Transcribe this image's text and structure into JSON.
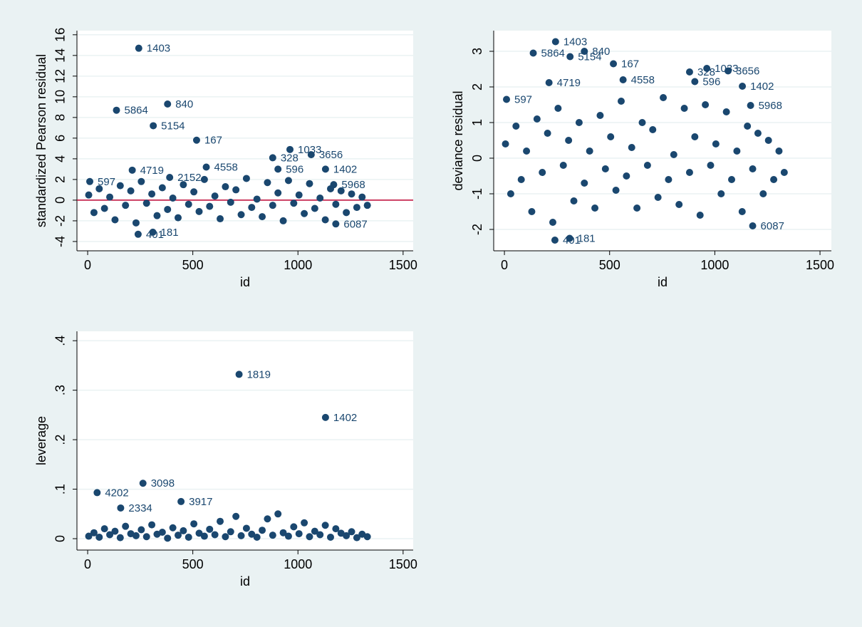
{
  "chart_data": [
    {
      "type": "scatter",
      "x_label": "id",
      "y_label": "standardized Pearson residual",
      "color": "#1a476f",
      "grid": true,
      "yline": {
        "value": 0,
        "color": "#c10534"
      },
      "xlim": [
        -51,
        1548
      ],
      "xticks": [
        0,
        500,
        1000,
        1500
      ],
      "ylim": [
        -4.9,
        16.4
      ],
      "yticks": [
        -4,
        -2,
        0,
        2,
        4,
        6,
        8,
        10,
        12,
        14,
        16
      ],
      "x": [
        243,
        137,
        380,
        312,
        518,
        564,
        962,
        880,
        1063,
        905,
        1131,
        212,
        390,
        1170,
        10,
        1180,
        240,
        310,
        5,
        30,
        55,
        80,
        105,
        130,
        155,
        180,
        205,
        230,
        255,
        280,
        305,
        330,
        355,
        380,
        405,
        430,
        455,
        480,
        505,
        530,
        555,
        580,
        605,
        630,
        655,
        680,
        705,
        730,
        755,
        780,
        805,
        830,
        855,
        880,
        905,
        930,
        955,
        980,
        1005,
        1030,
        1055,
        1080,
        1105,
        1130,
        1155,
        1180,
        1205,
        1230,
        1255,
        1280,
        1305,
        1330
      ],
      "values": [
        14.7,
        8.7,
        9.3,
        7.2,
        5.8,
        3.2,
        4.9,
        4.1,
        4.4,
        3.0,
        3.0,
        2.9,
        2.2,
        1.5,
        1.8,
        -2.3,
        -3.3,
        -3.1,
        0.5,
        -1.2,
        1.1,
        -0.8,
        0.3,
        -1.9,
        1.4,
        -0.5,
        0.9,
        -2.2,
        1.8,
        -0.3,
        0.6,
        -1.5,
        1.2,
        -0.9,
        0.2,
        -1.7,
        1.5,
        -0.4,
        0.8,
        -1.1,
        2.0,
        -0.6,
        0.4,
        -1.8,
        1.3,
        -0.2,
        1.0,
        -1.4,
        2.1,
        -0.7,
        0.1,
        -1.6,
        1.7,
        -0.5,
        0.7,
        -2.0,
        1.9,
        -0.3,
        0.5,
        -1.3,
        1.6,
        -0.8,
        0.2,
        -1.9,
        1.1,
        -0.4,
        0.9,
        -1.2,
        0.6,
        -0.7,
        0.3,
        -0.5
      ],
      "labels": [
        "1403",
        "5864",
        "840",
        "5154",
        "167",
        "4558",
        "1033",
        "328",
        "3656",
        "596",
        "1402",
        "4719",
        "2152",
        "5968",
        "597",
        "6087",
        "401",
        "181",
        null,
        null,
        null,
        null,
        null,
        null,
        null,
        null,
        null,
        null,
        null,
        null,
        null,
        null,
        null,
        null,
        null,
        null,
        null,
        null,
        null,
        null,
        null,
        null,
        null,
        null,
        null,
        null,
        null,
        null,
        null,
        null,
        null,
        null,
        null,
        null,
        null,
        null,
        null,
        null,
        null,
        null,
        null,
        null,
        null,
        null,
        null,
        null,
        null,
        null,
        null,
        null,
        null,
        null
      ]
    },
    {
      "type": "scatter",
      "x_label": "id",
      "y_label": "deviance residual",
      "color": "#1a476f",
      "grid": true,
      "xlim": [
        -51,
        1554
      ],
      "xticks": [
        0,
        500,
        1000,
        1500
      ],
      "ylim": [
        -2.6,
        3.58
      ],
      "yticks": [
        -2,
        -1,
        0,
        1,
        2,
        3
      ],
      "x": [
        243,
        137,
        380,
        312,
        518,
        564,
        880,
        962,
        1063,
        905,
        1131,
        212,
        1170,
        10,
        1180,
        240,
        310,
        5,
        30,
        55,
        80,
        105,
        130,
        155,
        180,
        205,
        230,
        255,
        280,
        305,
        330,
        355,
        380,
        405,
        430,
        455,
        480,
        505,
        530,
        555,
        580,
        605,
        630,
        655,
        680,
        705,
        730,
        755,
        780,
        805,
        830,
        855,
        880,
        905,
        930,
        955,
        980,
        1005,
        1030,
        1055,
        1080,
        1105,
        1130,
        1155,
        1180,
        1205,
        1230,
        1255,
        1280,
        1305,
        1330
      ],
      "values": [
        3.27,
        2.95,
        3.0,
        2.85,
        2.65,
        2.2,
        2.42,
        2.52,
        2.45,
        2.15,
        2.02,
        2.12,
        1.48,
        1.65,
        -1.9,
        -2.3,
        -2.25,
        0.4,
        -1.0,
        0.9,
        -0.6,
        0.2,
        -1.5,
        1.1,
        -0.4,
        0.7,
        -1.8,
        1.4,
        -0.2,
        0.5,
        -1.2,
        1.0,
        -0.7,
        0.2,
        -1.4,
        1.2,
        -0.3,
        0.6,
        -0.9,
        1.6,
        -0.5,
        0.3,
        -1.4,
        1.0,
        -0.2,
        0.8,
        -1.1,
        1.7,
        -0.6,
        0.1,
        -1.3,
        1.4,
        -0.4,
        0.6,
        -1.6,
        1.5,
        -0.2,
        0.4,
        -1.0,
        1.3,
        -0.6,
        0.2,
        -1.5,
        0.9,
        -0.3,
        0.7,
        -1.0,
        0.5,
        -0.6,
        0.2,
        -0.4
      ],
      "labels": [
        "1403",
        "5864",
        "840",
        "5154",
        "167",
        "4558",
        "328",
        "1033",
        "3656",
        "596",
        "1402",
        "4719",
        "5968",
        "597",
        "6087",
        "401",
        "181",
        null,
        null,
        null,
        null,
        null,
        null,
        null,
        null,
        null,
        null,
        null,
        null,
        null,
        null,
        null,
        null,
        null,
        null,
        null,
        null,
        null,
        null,
        null,
        null,
        null,
        null,
        null,
        null,
        null,
        null,
        null,
        null,
        null,
        null,
        null,
        null,
        null,
        null,
        null,
        null,
        null,
        null,
        null,
        null,
        null,
        null,
        null,
        null,
        null,
        null,
        null,
        null,
        null,
        null
      ]
    },
    {
      "type": "scatter",
      "x_label": "id",
      "y_label": "leverage",
      "color": "#1a476f",
      "grid": true,
      "xlim": [
        -51,
        1548
      ],
      "xticks": [
        0,
        500,
        1000,
        1500
      ],
      "ylim": [
        -0.023,
        0.419
      ],
      "yticks": [
        0,
        {
          "value": 0.1,
          "label": ".1"
        },
        {
          "value": 0.2,
          "label": ".2"
        },
        {
          "value": 0.3,
          "label": ".3"
        },
        {
          "value": 0.4,
          "label": ".4"
        }
      ],
      "x": [
        720,
        1131,
        45,
        263,
        444,
        157,
        5,
        30,
        55,
        80,
        105,
        130,
        155,
        180,
        205,
        230,
        255,
        280,
        305,
        330,
        355,
        380,
        405,
        430,
        455,
        480,
        505,
        530,
        555,
        580,
        605,
        630,
        655,
        680,
        705,
        730,
        755,
        780,
        805,
        830,
        855,
        880,
        905,
        930,
        955,
        980,
        1005,
        1030,
        1055,
        1080,
        1105,
        1130,
        1155,
        1180,
        1205,
        1230,
        1255,
        1280,
        1305,
        1330
      ],
      "values": [
        0.332,
        0.245,
        0.093,
        0.112,
        0.075,
        0.062,
        0.005,
        0.012,
        0.003,
        0.02,
        0.008,
        0.015,
        0.002,
        0.025,
        0.01,
        0.006,
        0.018,
        0.004,
        0.028,
        0.009,
        0.013,
        0.001,
        0.022,
        0.007,
        0.016,
        0.003,
        0.03,
        0.011,
        0.005,
        0.019,
        0.008,
        0.035,
        0.004,
        0.014,
        0.045,
        0.006,
        0.021,
        0.009,
        0.003,
        0.017,
        0.04,
        0.007,
        0.05,
        0.012,
        0.005,
        0.024,
        0.01,
        0.032,
        0.004,
        0.015,
        0.008,
        0.027,
        0.003,
        0.02,
        0.011,
        0.006,
        0.014,
        0.002,
        0.009,
        0.004
      ],
      "labels": [
        "1819",
        "1402",
        "4202",
        "3098",
        "3917",
        "2334",
        null,
        null,
        null,
        null,
        null,
        null,
        null,
        null,
        null,
        null,
        null,
        null,
        null,
        null,
        null,
        null,
        null,
        null,
        null,
        null,
        null,
        null,
        null,
        null,
        null,
        null,
        null,
        null,
        null,
        null,
        null,
        null,
        null,
        null,
        null,
        null,
        null,
        null,
        null,
        null,
        null,
        null,
        null,
        null,
        null,
        null,
        null,
        null,
        null,
        null,
        null,
        null,
        null,
        null
      ]
    }
  ]
}
